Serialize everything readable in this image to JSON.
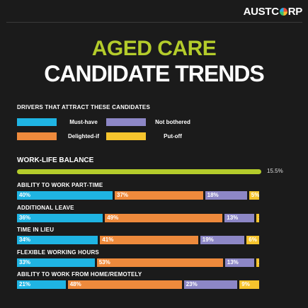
{
  "brand": "AUSTCORP",
  "title_line1": "AGED CARE",
  "title_line2": "CANDIDATE TRENDS",
  "colors": {
    "must_have": "#1fb4e3",
    "delighted_if": "#ee8a3c",
    "not_bothered": "#8d87c6",
    "put_off": "#f6c42d",
    "accent_green": "#b4cc2b"
  },
  "legend": {
    "title": "DRIVERS THAT ATTRACT THESE CANDIDATES",
    "items": [
      {
        "label": "Must-have",
        "color": "#1fb4e3"
      },
      {
        "label": "Not bothered",
        "color": "#8d87c6"
      },
      {
        "label": "Delighted-if",
        "color": "#ee8a3c"
      },
      {
        "label": "Put-off",
        "color": "#f6c42d"
      }
    ]
  },
  "chart_data": {
    "type": "bar",
    "stacked": true,
    "orientation": "horizontal",
    "legend_placement": "top-left",
    "headline": {
      "label": "WORK-LIFE BALANCE",
      "value": 15.5,
      "value_label": "15.5%"
    },
    "categories": [
      "ABILITY TO WORK PART-TIME",
      "ADDITIONAL LEAVE",
      "TIME IN LIEU",
      "FLEXIBLE WORKING HOURS",
      "ABILITY TO WORK FROM HOME/REMOTELY"
    ],
    "series": [
      {
        "name": "Must-have",
        "values": [
          40,
          36,
          34,
          33,
          21
        ]
      },
      {
        "name": "Delighted-if",
        "values": [
          37,
          49,
          41,
          53,
          48
        ]
      },
      {
        "name": "Not bothered",
        "values": [
          18,
          13,
          19,
          13,
          23
        ]
      },
      {
        "name": "Put-off",
        "values": [
          5,
          2,
          6,
          2,
          9
        ]
      }
    ]
  }
}
